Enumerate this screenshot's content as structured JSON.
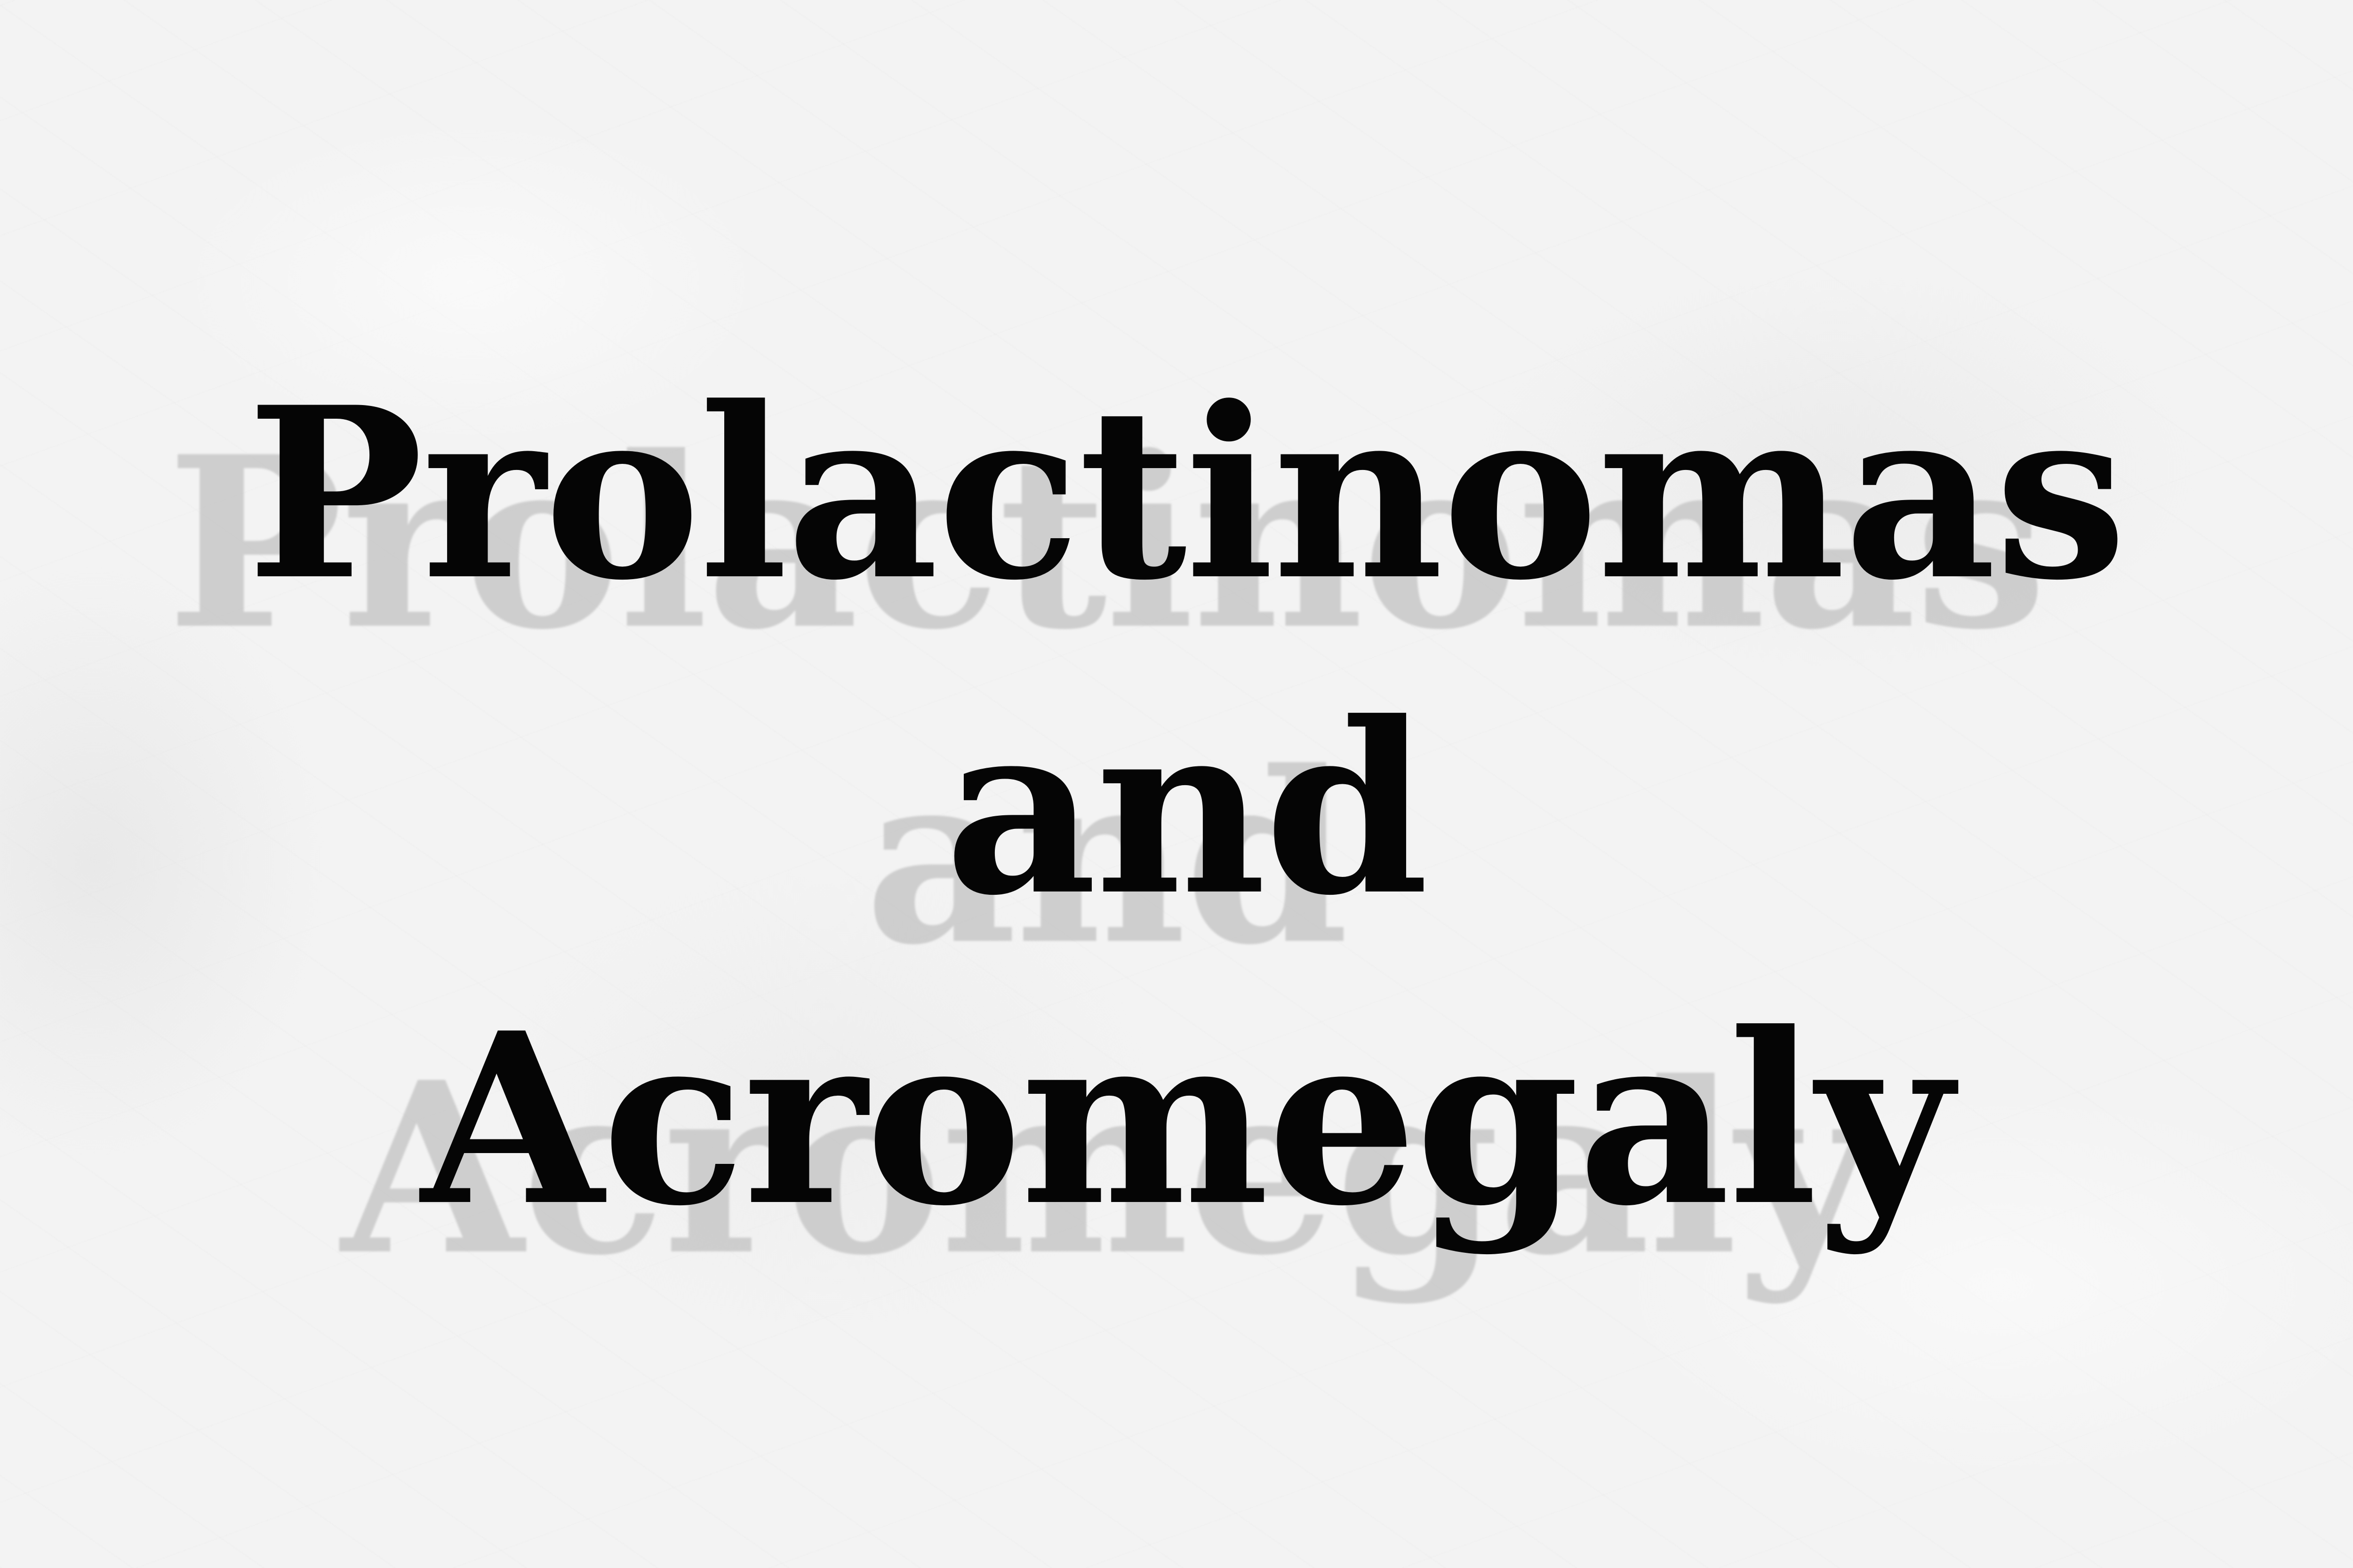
{
  "title": {
    "line1": "Prolactinomas",
    "line2": "and",
    "line3": "Acromegaly"
  },
  "colors": {
    "background": "#f3f3f3",
    "text": "#050505",
    "shadow": "#c2c2c2"
  }
}
